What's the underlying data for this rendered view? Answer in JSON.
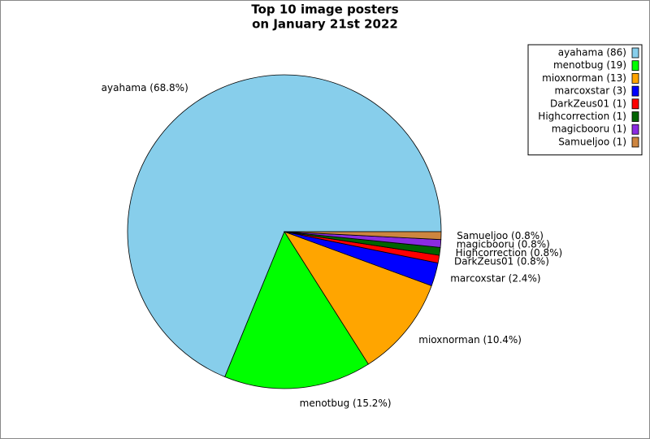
{
  "chart_data": {
    "type": "pie",
    "title": [
      "Top 10 image posters",
      "on January 21st 2022"
    ],
    "values": [
      86,
      19,
      13,
      3,
      1,
      1,
      1,
      1
    ],
    "value_labels": [
      "ayahama (86)",
      "menotbug (19)",
      "mioxnorman (13)",
      "marcoxstar (3)",
      "DarkZeus01 (1)",
      "Highcorrection (1)",
      "magicbooru (1)",
      "Samueljoo (1)"
    ],
    "percents": [
      68.8,
      15.2,
      10.4,
      2.4,
      0.8,
      0.8,
      0.8,
      0.8
    ],
    "percent_labels": [
      "ayahama (68.8%)",
      "menotbug (15.2%)",
      "mioxnorman (10.4%)",
      "marcoxstar (2.4%)",
      "DarkZeus01 (0.8%)",
      "Highcorrection (0.8%)",
      "magicbooru (0.8%)",
      "Samueljoo (0.8%)"
    ],
    "colors": [
      "#87ceeb",
      "#00ff00",
      "#ffa500",
      "#0000ff",
      "#ff0000",
      "#006400",
      "#8a2be2",
      "#cd853f"
    ],
    "legend": "upper right"
  }
}
